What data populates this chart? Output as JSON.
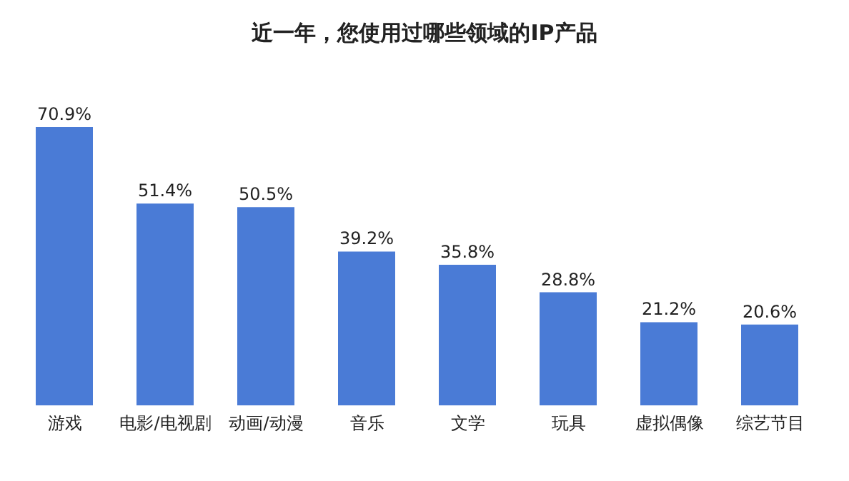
{
  "chart_data": {
    "type": "bar",
    "title": "近一年，您使用过哪些领域的IP产品",
    "categories": [
      "游戏",
      "电影/电视剧",
      "动画/动漫",
      "音乐",
      "文学",
      "玩具",
      "虚拟偶像",
      "综艺节目"
    ],
    "values": [
      70.9,
      51.4,
      50.5,
      39.2,
      35.8,
      28.8,
      21.2,
      20.6
    ],
    "value_labels": [
      "70.9%",
      "51.4%",
      "50.5%",
      "39.2%",
      "35.8%",
      "28.8%",
      "21.2%",
      "20.6%"
    ],
    "color": "#4a7bd6",
    "grid": false,
    "legend": false
  }
}
